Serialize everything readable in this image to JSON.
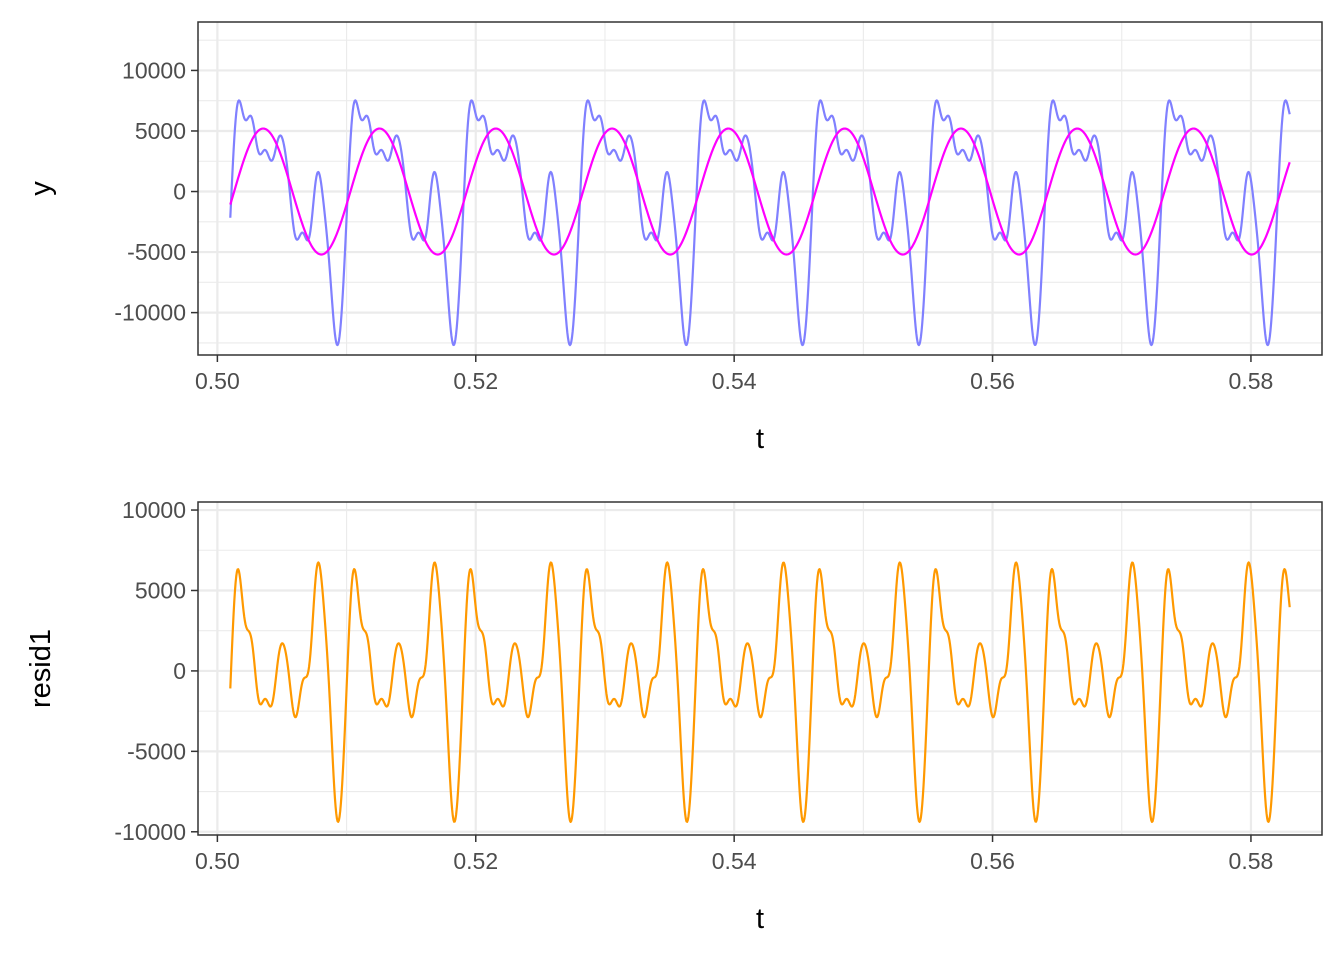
{
  "chart_data": [
    {
      "type": "line",
      "xlabel": "t",
      "ylabel": "y",
      "xlim": [
        0.4985,
        0.5855
      ],
      "ylim": [
        -13500,
        14000
      ],
      "x_ticks": [
        0.5,
        0.52,
        0.54,
        0.56,
        0.58
      ],
      "x_tick_labels": [
        "0.50",
        "0.52",
        "0.54",
        "0.56",
        "0.58"
      ],
      "y_ticks": [
        -10000,
        -5000,
        0,
        5000,
        10000
      ],
      "y_tick_labels": [
        "-10000",
        "-5000",
        "0",
        "5000",
        "10000"
      ],
      "grid": true,
      "x_range": [
        0.501,
        0.583
      ],
      "series": [
        {
          "role": "signal",
          "color": "#8080ff",
          "signal_model": {
            "fundamental_hz": 111.1,
            "harmonics": [
              {
                "k": 1,
                "amp": 5200,
                "phase": 0.35
              },
              {
                "k": 2,
                "amp": 2600,
                "phase": 2.1
              },
              {
                "k": 3,
                "amp": 4300,
                "phase": 4.6
              },
              {
                "k": 4,
                "amp": 1500,
                "phase": 1.3
              },
              {
                "k": 5,
                "amp": 1000,
                "phase": 3.4
              },
              {
                "k": 7,
                "amp": 650,
                "phase": 0.8
              },
              {
                "k": 9,
                "amp": 350,
                "phase": 2.5
              }
            ]
          }
        },
        {
          "role": "fit",
          "color": "#ff00ff",
          "signal_model": {
            "fundamental_hz": 111.1,
            "harmonics": [
              {
                "k": 1,
                "amp": 5200,
                "phase": 0.35
              }
            ]
          }
        }
      ]
    },
    {
      "type": "line",
      "xlabel": "t",
      "ylabel": "resid1",
      "xlim": [
        0.4985,
        0.5855
      ],
      "ylim": [
        -10200,
        10500
      ],
      "x_ticks": [
        0.5,
        0.52,
        0.54,
        0.56,
        0.58
      ],
      "x_tick_labels": [
        "0.50",
        "0.52",
        "0.54",
        "0.56",
        "0.58"
      ],
      "y_ticks": [
        -10000,
        -5000,
        0,
        5000,
        10000
      ],
      "y_tick_labels": [
        "-10000",
        "-5000",
        "0",
        "5000",
        "10000"
      ],
      "grid": true,
      "x_range": [
        0.501,
        0.583
      ],
      "series": [
        {
          "role": "residual",
          "color": "#ff9900",
          "signal_model": {
            "fundamental_hz": 111.1,
            "harmonics": [
              {
                "k": 2,
                "amp": 2600,
                "phase": 2.1
              },
              {
                "k": 3,
                "amp": 4300,
                "phase": 4.6
              },
              {
                "k": 4,
                "amp": 1500,
                "phase": 1.3
              },
              {
                "k": 5,
                "amp": 1000,
                "phase": 3.4
              },
              {
                "k": 7,
                "amp": 650,
                "phase": 0.8
              },
              {
                "k": 9,
                "amp": 350,
                "phase": 2.5
              }
            ]
          }
        }
      ]
    }
  ]
}
